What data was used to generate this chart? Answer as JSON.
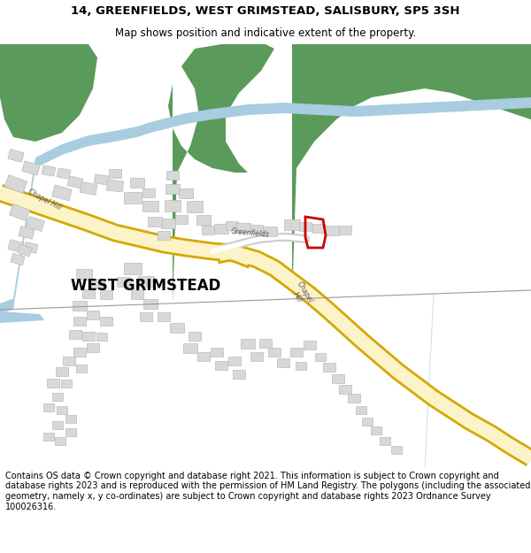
{
  "title_line1": "14, GREENFIELDS, WEST GRIMSTEAD, SALISBURY, SP5 3SH",
  "title_line2": "Map shows position and indicative extent of the property.",
  "footer_text": "Contains OS data © Crown copyright and database right 2021. This information is subject to Crown copyright and database rights 2023 and is reproduced with the permission of HM Land Registry. The polygons (including the associated geometry, namely x, y co-ordinates) are subject to Crown copyright and database rights 2023 Ordnance Survey 100026316.",
  "map_bg": "#ffffff",
  "road_color": "#fdf3c8",
  "road_border": "#d4a800",
  "green_color": "#5a9a5a",
  "blue_color": "#a8cce0",
  "building_color": "#d8d8d8",
  "building_edge": "#bbbbbb",
  "plot_color": "#cc0000",
  "divline_color": "#999999",
  "lightblue_line": "#b0d8f0",
  "title_fontsize": 9.5,
  "subtitle_fontsize": 8.5,
  "footer_fontsize": 7.0
}
